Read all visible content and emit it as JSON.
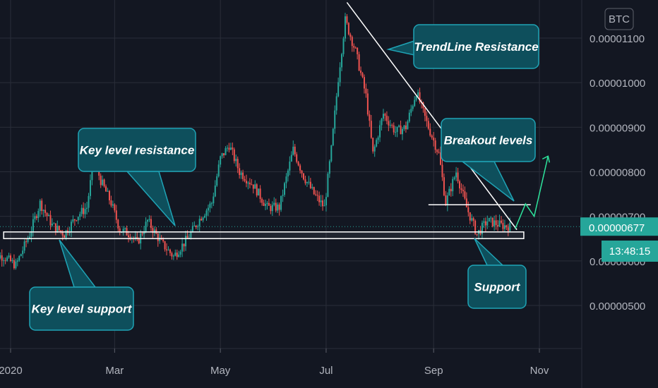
{
  "chart_data": {
    "type": "candlestick",
    "symbol_currency": "BTC",
    "y_ticks": [
      "0.00001100",
      "0.00001000",
      "0.00000900",
      "0.00000800",
      "0.00000700",
      "0.00000600",
      "0.00000500"
    ],
    "y_tick_values": [
      1.1e-05,
      1e-05,
      9e-06,
      8e-06,
      7e-06,
      6e-06,
      5e-06
    ],
    "ylim": [
      4.2e-06,
      1.19e-05
    ],
    "x_ticks": [
      "2020",
      "Mar",
      "May",
      "Jul",
      "Sep",
      "Nov"
    ],
    "x_tick_values": [
      "2020-01-01",
      "2020-03-01",
      "2020-05-01",
      "2020-07-01",
      "2020-09-01",
      "2020-11-01"
    ],
    "last_price": "0.00000677",
    "countdown": "13:48:15",
    "grid": true,
    "colors": {
      "background": "#131722",
      "grid": "#2a2e39",
      "bull": "#26a69a",
      "bear": "#ef5350",
      "callout_fill": "#0e4f5c",
      "callout_border": "#1fa3b5",
      "projection": "#2ee59d",
      "price_badge": "#26a69a"
    },
    "annotations": [
      {
        "id": "trendline-resistance",
        "text": "TrendLine Resistance"
      },
      {
        "id": "key-level-resistance",
        "text": "Key level resistance"
      },
      {
        "id": "breakout-levels",
        "text": "Breakout levels"
      },
      {
        "id": "key-level-support",
        "text": "Key level support"
      },
      {
        "id": "support",
        "text": "Support"
      }
    ],
    "price_path": [
      [
        "2019-12-20",
        6.15e-06
      ],
      [
        "2019-12-28",
        6.1e-06
      ],
      [
        "2020-01-04",
        5.9e-06
      ],
      [
        "2020-01-12",
        6.6e-06
      ],
      [
        "2020-01-18",
        7.3e-06
      ],
      [
        "2020-01-25",
        6.8e-06
      ],
      [
        "2020-02-01",
        6.6e-06
      ],
      [
        "2020-02-08",
        7e-06
      ],
      [
        "2020-02-14",
        7.2e-06
      ],
      [
        "2020-02-18",
        8.3e-06
      ],
      [
        "2020-02-22",
        7.8e-06
      ],
      [
        "2020-02-28",
        7.3e-06
      ],
      [
        "2020-03-04",
        6.7e-06
      ],
      [
        "2020-03-10",
        6.6e-06
      ],
      [
        "2020-03-14",
        6.4e-06
      ],
      [
        "2020-03-20",
        6.9e-06
      ],
      [
        "2020-03-28",
        6.4e-06
      ],
      [
        "2020-04-04",
        6.1e-06
      ],
      [
        "2020-04-12",
        6.5e-06
      ],
      [
        "2020-04-20",
        7e-06
      ],
      [
        "2020-04-26",
        7.3e-06
      ],
      [
        "2020-05-01",
        8.3e-06
      ],
      [
        "2020-05-06",
        8.6e-06
      ],
      [
        "2020-05-12",
        8e-06
      ],
      [
        "2020-05-20",
        7.7e-06
      ],
      [
        "2020-05-28",
        7.2e-06
      ],
      [
        "2020-06-04",
        7.2e-06
      ],
      [
        "2020-06-12",
        8.5e-06
      ],
      [
        "2020-06-18",
        7.9e-06
      ],
      [
        "2020-06-24",
        7.5e-06
      ],
      [
        "2020-06-30",
        7.2e-06
      ],
      [
        "2020-07-04",
        8.5e-06
      ],
      [
        "2020-07-08",
        1.01e-05
      ],
      [
        "2020-07-12",
        1.14e-05
      ],
      [
        "2020-07-18",
        1.07e-05
      ],
      [
        "2020-07-24",
        9.7e-06
      ],
      [
        "2020-07-28",
        8.4e-06
      ],
      [
        "2020-08-03",
        9.3e-06
      ],
      [
        "2020-08-10",
        8.9e-06
      ],
      [
        "2020-08-16",
        9e-06
      ],
      [
        "2020-08-22",
        9.8e-06
      ],
      [
        "2020-08-28",
        9.1e-06
      ],
      [
        "2020-09-04",
        8.4e-06
      ],
      [
        "2020-09-08",
        7.3e-06
      ],
      [
        "2020-09-14",
        8e-06
      ],
      [
        "2020-09-20",
        7.2e-06
      ],
      [
        "2020-09-26",
        6.6e-06
      ],
      [
        "2020-10-02",
        6.9e-06
      ],
      [
        "2020-10-10",
        6.8e-06
      ],
      [
        "2020-10-15",
        6.77e-06
      ]
    ],
    "key_level_zone": {
      "from": "2019-12-28",
      "to": "2020-10-23",
      "low": 6.5e-06,
      "high": 6.65e-06
    },
    "trendline": {
      "from": [
        "2020-07-13",
        1.18e-05
      ],
      "to": [
        "2020-10-19",
        6.7e-06
      ]
    },
    "breakout_level": {
      "from": "2020-08-29",
      "to": "2020-10-27",
      "value": 7.26e-06
    },
    "projection_path": [
      [
        "2020-10-18",
        6.72e-06
      ],
      [
        "2020-10-24",
        7.28e-06
      ],
      [
        "2020-10-29",
        7e-06
      ],
      [
        "2020-11-06",
        8.35e-06
      ]
    ]
  }
}
